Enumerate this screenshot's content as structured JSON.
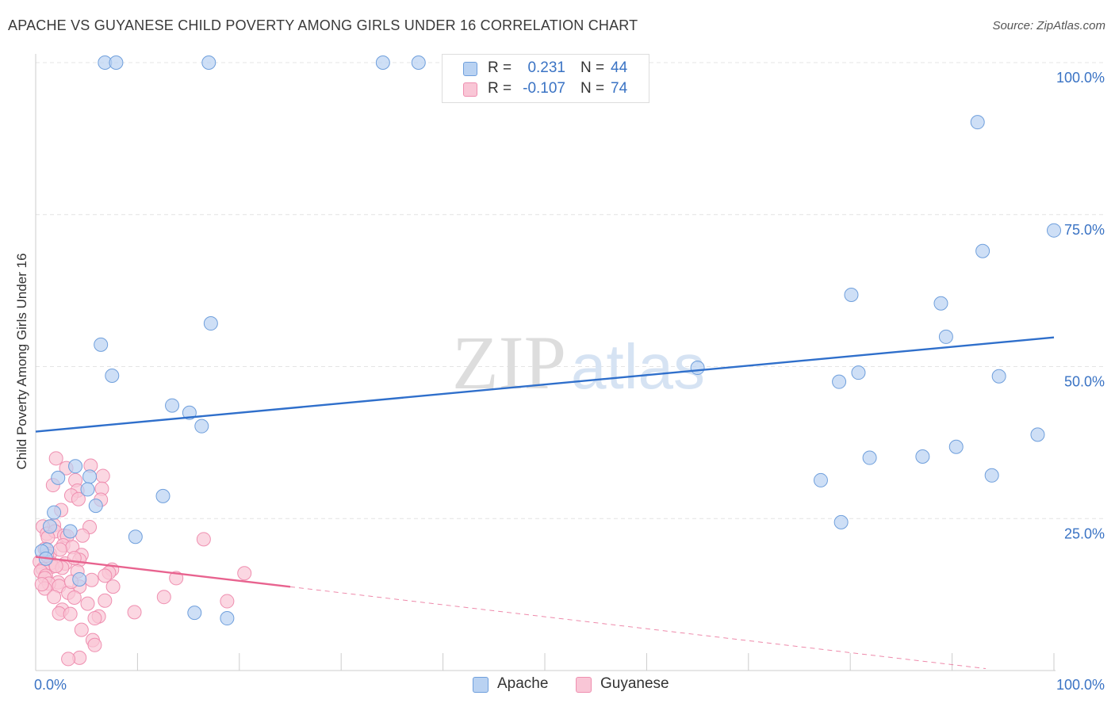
{
  "header": {
    "title": "APACHE VS GUYANESE CHILD POVERTY AMONG GIRLS UNDER 16 CORRELATION CHART",
    "source": "Source: ZipAtlas.com"
  },
  "watermark": {
    "zip": "ZIP",
    "atlas": "atlas"
  },
  "colors": {
    "apache_fill": "#b9d2f2",
    "apache_stroke": "#6f9fdc",
    "apache_line": "#2f6fcb",
    "guyanese_fill": "#f9c6d6",
    "guyanese_stroke": "#ef8fb0",
    "guyanese_line": "#e8638f",
    "axis_text": "#3a73c4",
    "grid": "#e4e4e4"
  },
  "legend": {
    "rows": [
      {
        "r_label": "R =",
        "r_value": "0.231",
        "n_label": "N =",
        "n_value": "44"
      },
      {
        "r_label": "R =",
        "r_value": "-0.107",
        "n_label": "N =",
        "n_value": "74"
      }
    ],
    "series": [
      "Apache",
      "Guyanese"
    ]
  },
  "chart_data": {
    "type": "scatter",
    "title": "APACHE VS GUYANESE CHILD POVERTY AMONG GIRLS UNDER 16 CORRELATION CHART",
    "xlabel": "",
    "ylabel": "Child Poverty Among Girls Under 16",
    "xlim": [
      0,
      100
    ],
    "ylim": [
      0,
      100
    ],
    "x_tick_labels": [
      "0.0%",
      "100.0%"
    ],
    "y_ticks": [
      25,
      50,
      75,
      100
    ],
    "y_tick_labels": [
      "25.0%",
      "50.0%",
      "75.0%",
      "100.0%"
    ],
    "grid": true,
    "series": [
      {
        "name": "Apache",
        "r": 0.231,
        "n": 44,
        "trend": {
          "x0": 0,
          "y0": 39.3,
          "x1": 100,
          "y1": 54.8,
          "dashed_from": null
        },
        "points": [
          [
            6.8,
            100
          ],
          [
            7.9,
            100
          ],
          [
            17,
            100
          ],
          [
            34.1,
            100
          ],
          [
            37.6,
            100
          ],
          [
            92.5,
            90.2
          ],
          [
            100,
            72.4
          ],
          [
            93,
            69.0
          ],
          [
            80.1,
            61.8
          ],
          [
            88.9,
            60.4
          ],
          [
            89.4,
            54.9
          ],
          [
            17.2,
            57.1
          ],
          [
            6.4,
            53.6
          ],
          [
            7.5,
            48.5
          ],
          [
            65,
            49.8
          ],
          [
            80.8,
            49.0
          ],
          [
            78.9,
            47.5
          ],
          [
            94.6,
            48.4
          ],
          [
            13.4,
            43.6
          ],
          [
            15.1,
            42.4
          ],
          [
            16.3,
            40.2
          ],
          [
            98.4,
            38.8
          ],
          [
            90.4,
            36.8
          ],
          [
            81.9,
            35.0
          ],
          [
            87.1,
            35.2
          ],
          [
            3.9,
            33.6
          ],
          [
            5.3,
            31.9
          ],
          [
            2.2,
            31.7
          ],
          [
            93.9,
            32.1
          ],
          [
            77.1,
            31.3
          ],
          [
            5.1,
            29.8
          ],
          [
            12.5,
            28.7
          ],
          [
            5.9,
            27.1
          ],
          [
            1.8,
            26.0
          ],
          [
            1.4,
            23.7
          ],
          [
            3.4,
            22.9
          ],
          [
            9.8,
            22.0
          ],
          [
            79.1,
            24.4
          ],
          [
            1.1,
            19.9
          ],
          [
            0.6,
            19.6
          ],
          [
            1.0,
            18.4
          ],
          [
            4.3,
            15.0
          ],
          [
            15.6,
            9.5
          ],
          [
            18.8,
            8.6
          ]
        ]
      },
      {
        "name": "Guyanese",
        "r": -0.107,
        "n": 74,
        "trend": {
          "x0": 0,
          "y0": 18.7,
          "x1": 100,
          "y1": -1.0,
          "dashed_from": 25
        },
        "points": [
          [
            2.0,
            34.9
          ],
          [
            3.0,
            33.3
          ],
          [
            5.4,
            33.7
          ],
          [
            6.6,
            32.0
          ],
          [
            3.9,
            31.3
          ],
          [
            1.7,
            30.5
          ],
          [
            4.1,
            29.6
          ],
          [
            6.5,
            29.9
          ],
          [
            3.5,
            28.8
          ],
          [
            4.2,
            28.2
          ],
          [
            6.4,
            28.1
          ],
          [
            2.5,
            26.4
          ],
          [
            1.8,
            23.9
          ],
          [
            0.7,
            23.7
          ],
          [
            5.3,
            23.6
          ],
          [
            1.1,
            22.5
          ],
          [
            1.9,
            22.9
          ],
          [
            2.8,
            22.2
          ],
          [
            3.1,
            22.1
          ],
          [
            1.2,
            21.9
          ],
          [
            4.6,
            22.2
          ],
          [
            16.5,
            21.6
          ],
          [
            2.7,
            20.6
          ],
          [
            0.9,
            20.0
          ],
          [
            3.6,
            20.3
          ],
          [
            1.4,
            19.2
          ],
          [
            4.5,
            19.0
          ],
          [
            4.3,
            18.2
          ],
          [
            0.4,
            17.9
          ],
          [
            1.5,
            17.7
          ],
          [
            2.9,
            17.6
          ],
          [
            3.8,
            18.5
          ],
          [
            1.6,
            17.1
          ],
          [
            0.7,
            16.7
          ],
          [
            2.6,
            16.9
          ],
          [
            0.5,
            16.3
          ],
          [
            1.0,
            15.6
          ],
          [
            7.5,
            16.6
          ],
          [
            4.1,
            16.3
          ],
          [
            7.2,
            16.1
          ],
          [
            6.8,
            15.6
          ],
          [
            20.5,
            16.0
          ],
          [
            0.9,
            15.2
          ],
          [
            2.2,
            14.5
          ],
          [
            5.5,
            14.9
          ],
          [
            13.8,
            15.2
          ],
          [
            1.3,
            14.3
          ],
          [
            2.3,
            13.9
          ],
          [
            4.3,
            13.8
          ],
          [
            7.6,
            13.8
          ],
          [
            0.9,
            13.5
          ],
          [
            3.2,
            12.8
          ],
          [
            1.8,
            12.1
          ],
          [
            3.8,
            12.0
          ],
          [
            12.6,
            12.1
          ],
          [
            6.8,
            11.5
          ],
          [
            5.1,
            11.0
          ],
          [
            18.8,
            11.4
          ],
          [
            2.6,
            10.0
          ],
          [
            9.7,
            9.6
          ],
          [
            2.3,
            9.4
          ],
          [
            3.4,
            9.3
          ],
          [
            6.2,
            8.9
          ],
          [
            5.8,
            8.6
          ],
          [
            4.5,
            6.7
          ],
          [
            5.6,
            5.0
          ],
          [
            5.8,
            4.2
          ],
          [
            4.3,
            2.1
          ],
          [
            3.2,
            1.9
          ],
          [
            2.0,
            17.2
          ],
          [
            2.4,
            19.9
          ],
          [
            1.1,
            18.9
          ],
          [
            3.5,
            14.6
          ],
          [
            0.6,
            14.2
          ]
        ]
      }
    ]
  }
}
